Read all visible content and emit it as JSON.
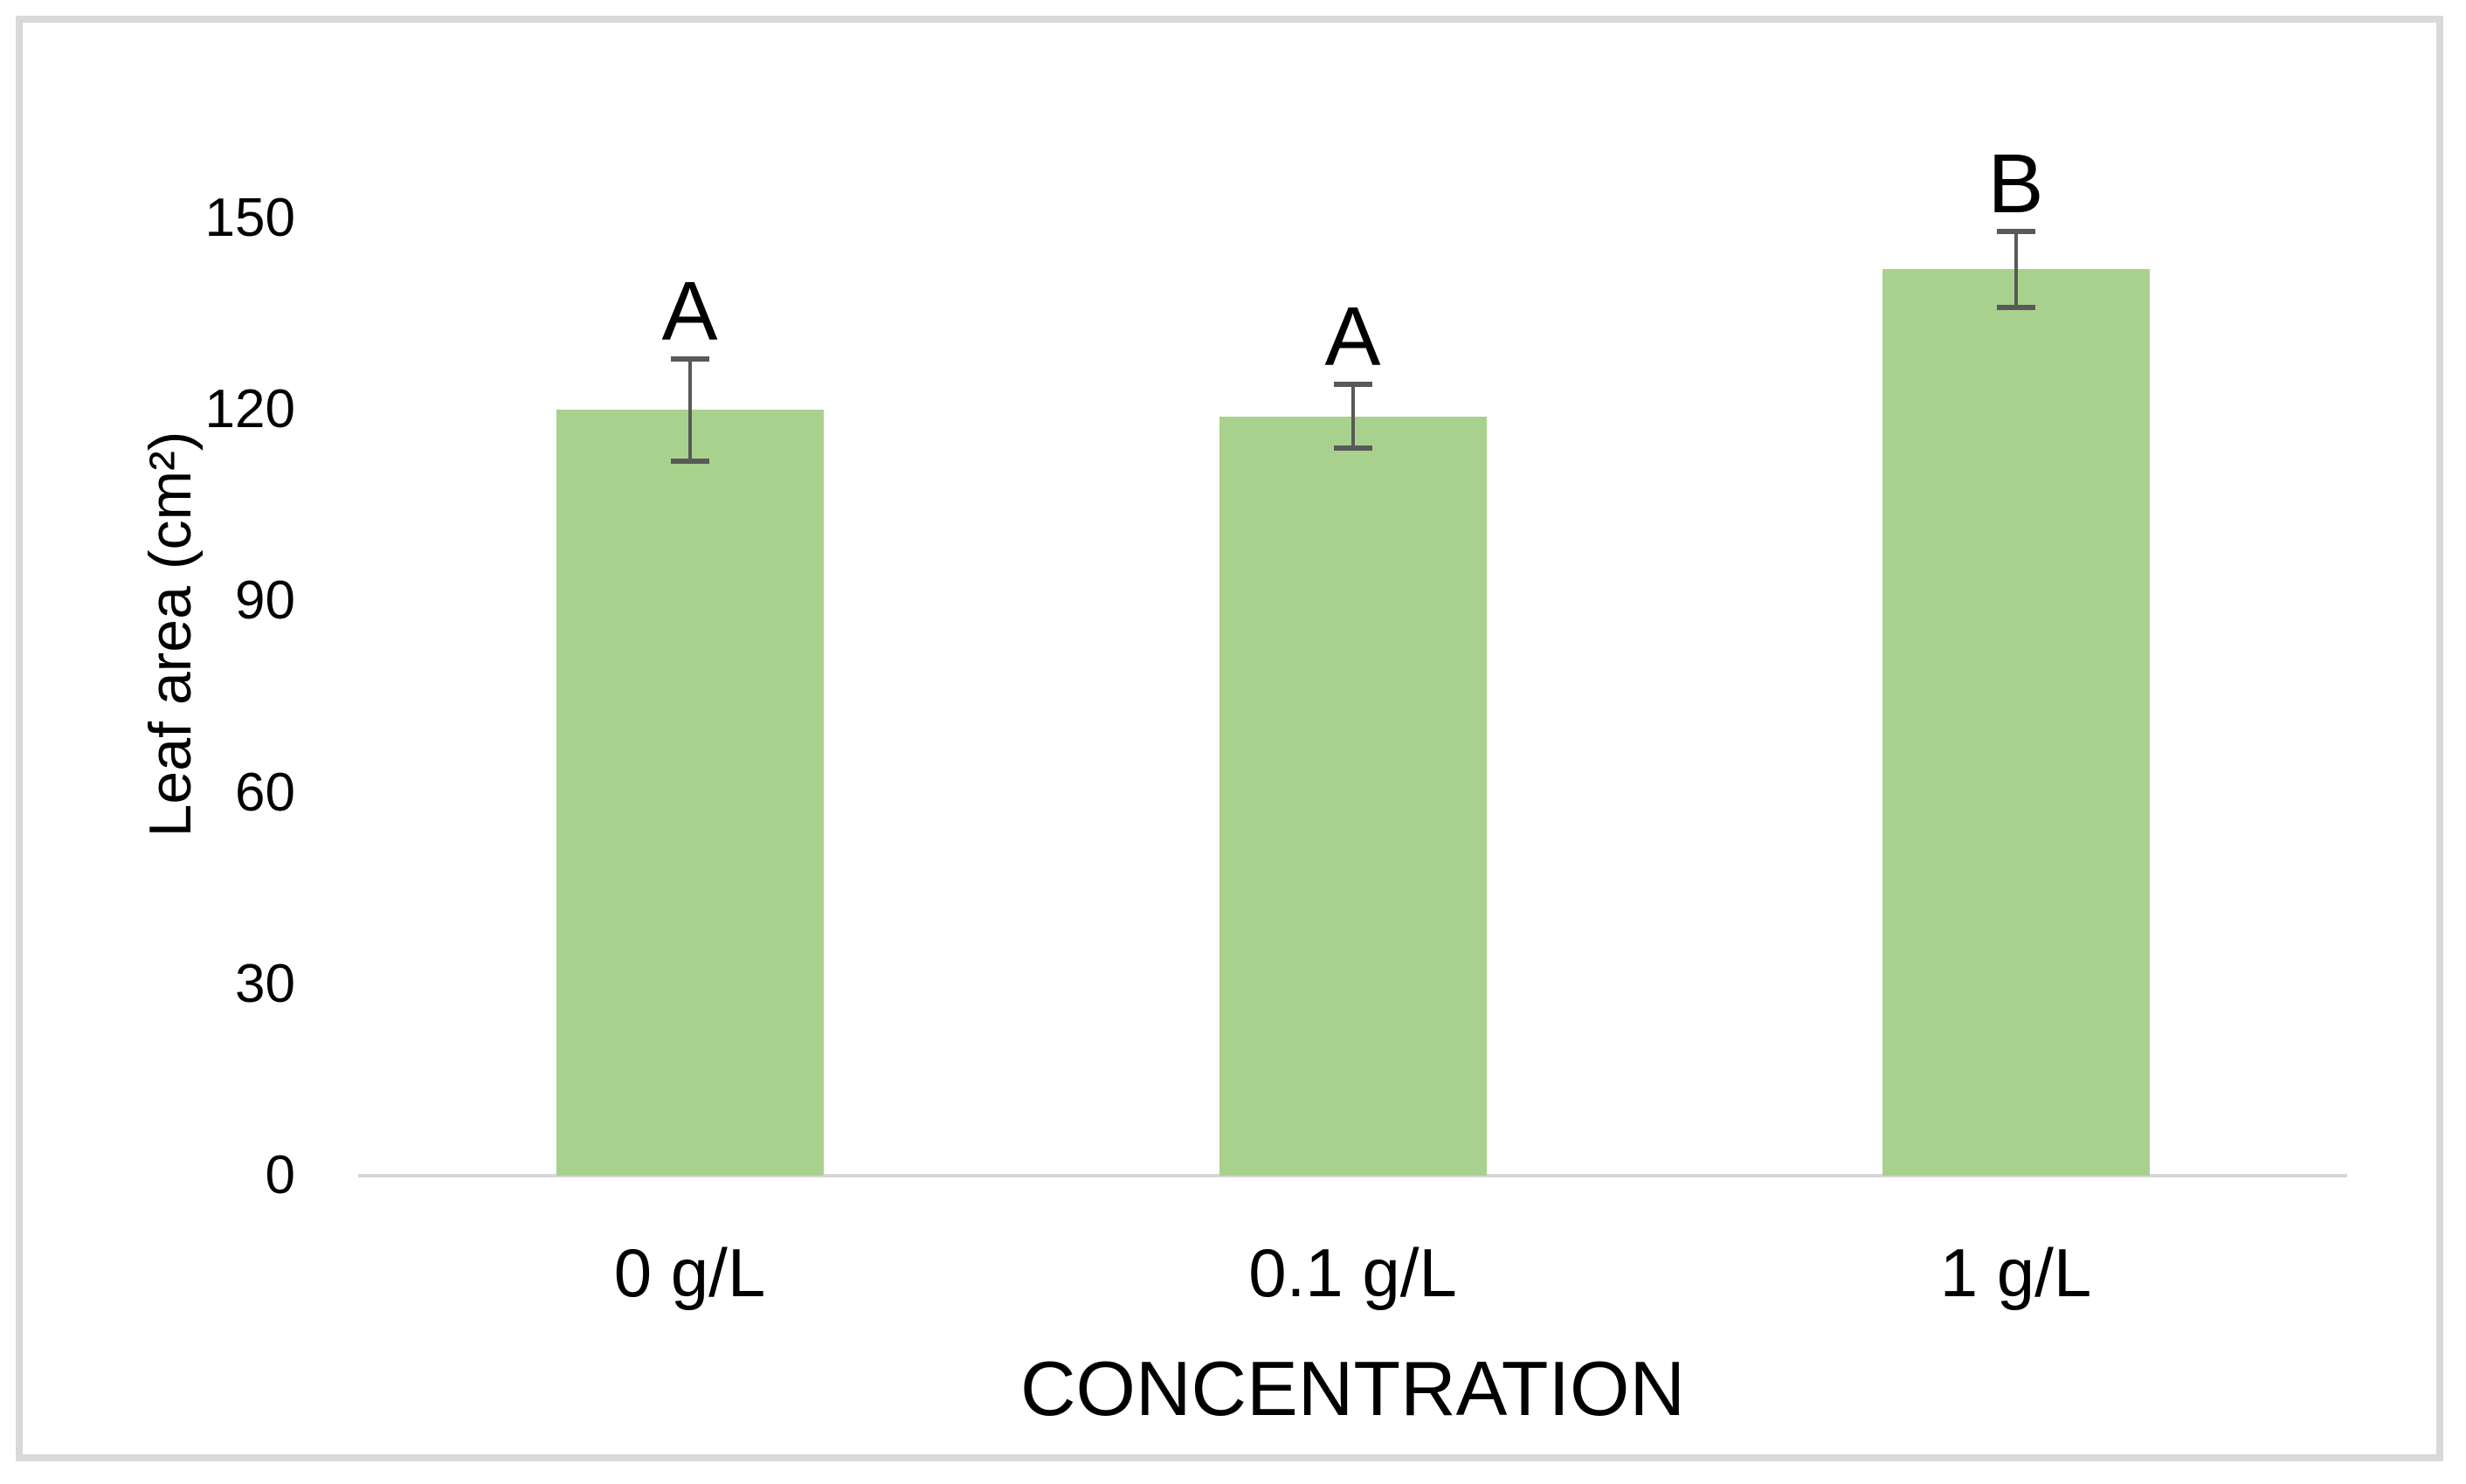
{
  "chart_data": {
    "type": "bar",
    "title": "",
    "categories": [
      "0 g/L",
      "0.1 g/L",
      "1 g/L"
    ],
    "values": [
      120,
      119,
      142
    ],
    "error_bars_plus_minus": [
      8,
      5,
      6
    ],
    "bar_top_labels": [
      "A",
      "A",
      "B"
    ],
    "xlabel": "CONCENTRATION",
    "ylabel": "Leaf area (cm²)",
    "yticks": [
      0,
      30,
      60,
      90,
      120,
      150
    ],
    "ylim": [
      0,
      150
    ],
    "grid": false,
    "legend_position": "none",
    "colors": {
      "bar_fill": "#a9d18e",
      "error_bar": "#595959",
      "axis_line": "#d6d6d6",
      "frame_border": "#d9d9d9",
      "text": "#000000",
      "background": "#ffffff"
    }
  }
}
